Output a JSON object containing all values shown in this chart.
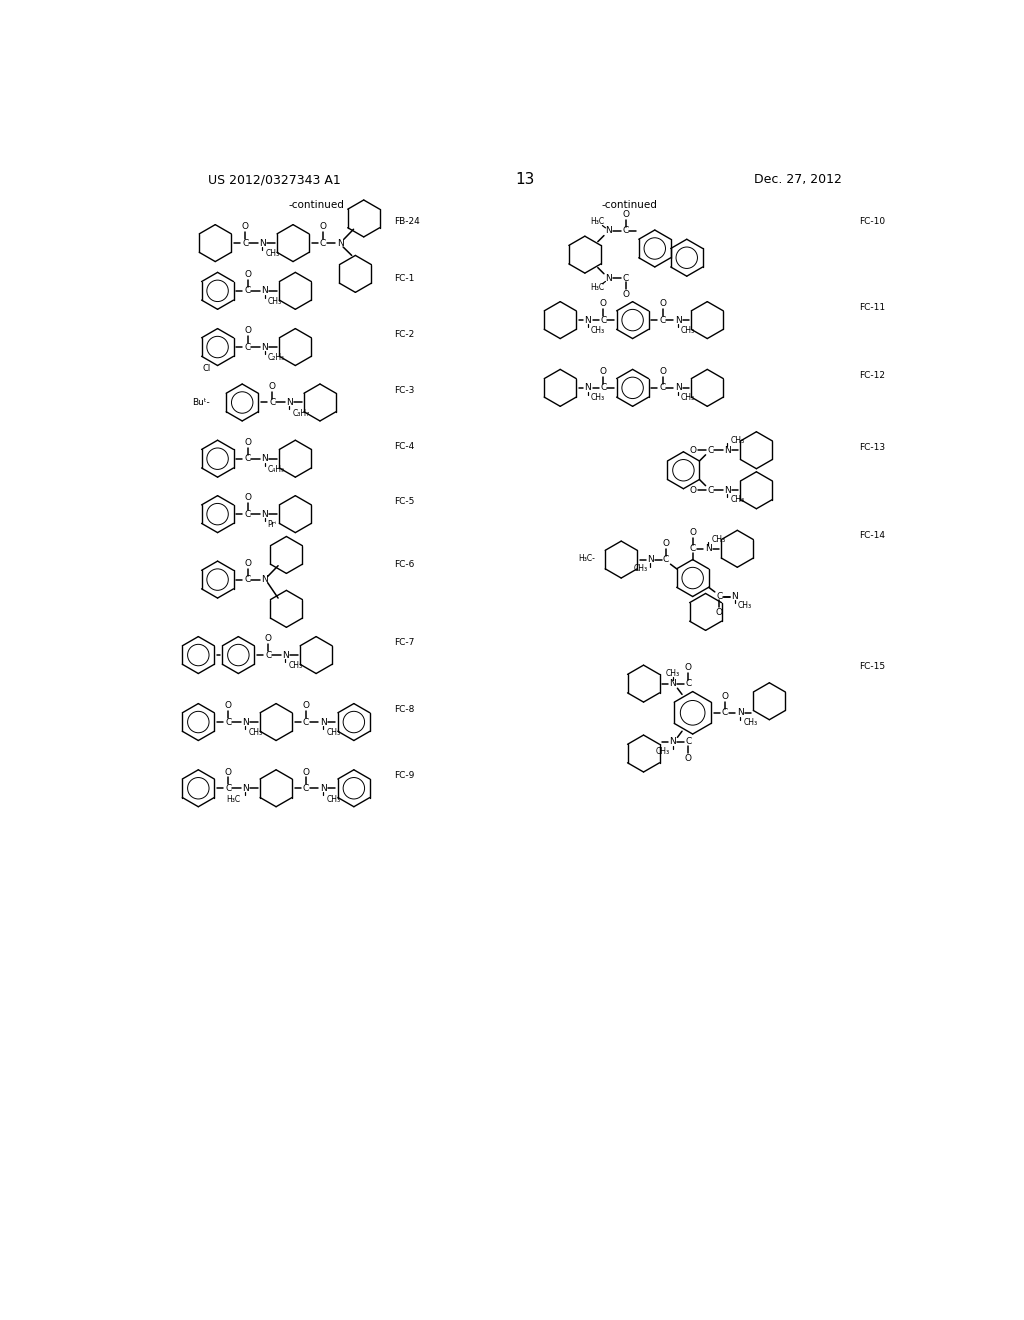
{
  "background_color": "#ffffff",
  "page_number": "13",
  "left_header": "US 2012/0327343 A1",
  "right_header": "Dec. 27, 2012",
  "continued_left": "-continued",
  "continued_right": "-continued",
  "figsize": [
    10.24,
    13.2
  ],
  "dpi": 100
}
